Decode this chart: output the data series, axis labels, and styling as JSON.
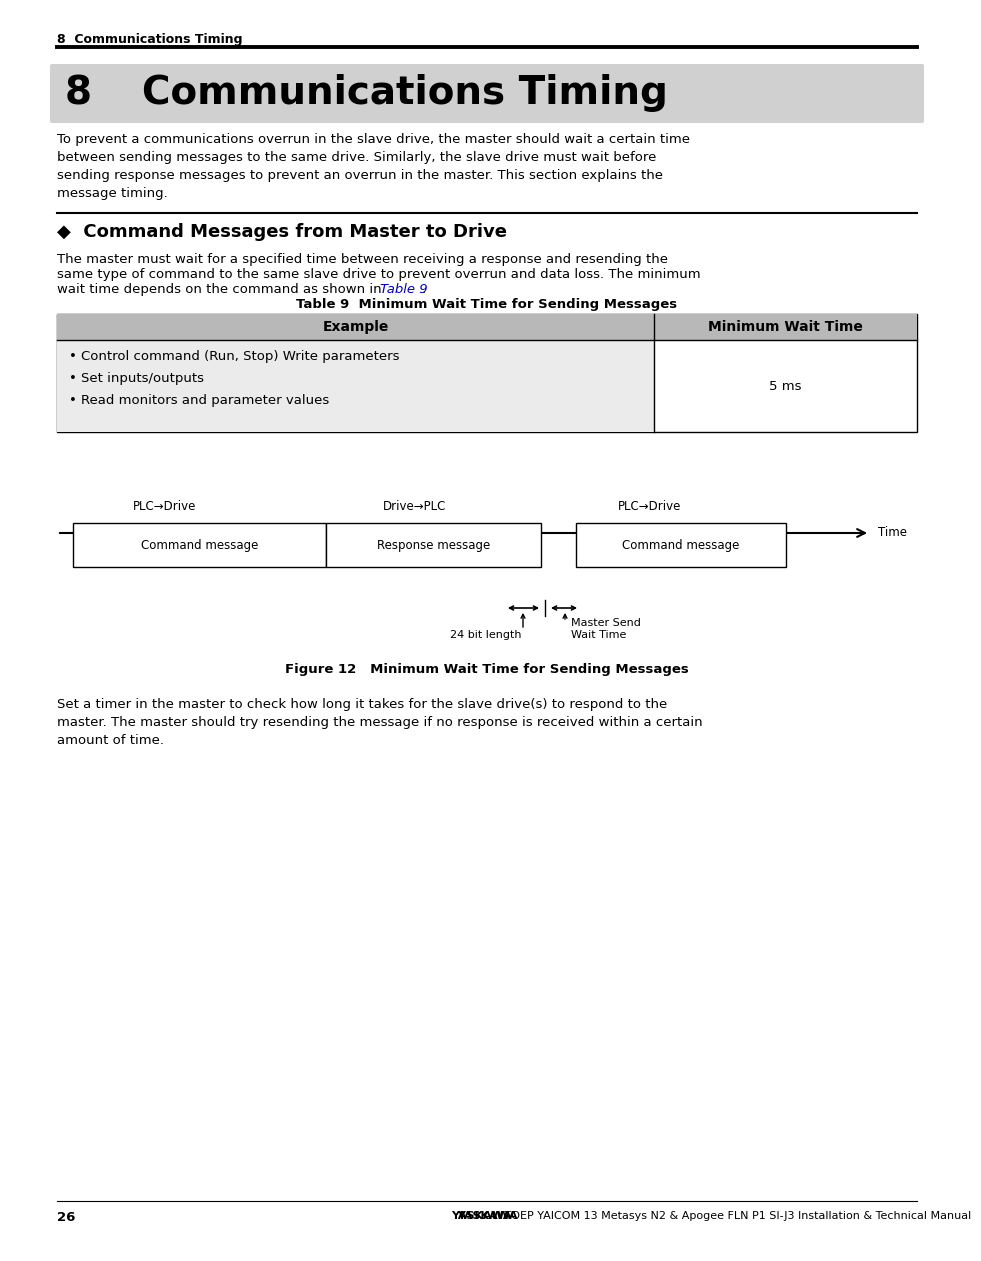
{
  "page_title": "8  Communications Timing",
  "section_number": "8",
  "section_title": "Communications Timing",
  "section_bg": "#d0d0d0",
  "body_text": "To prevent a communications overrun in the slave drive, the master should wait a certain time\nbetween sending messages to the same drive. Similarly, the slave drive must wait before\nsending response messages to prevent an overrun in the master. This section explains the\nmessage timing.",
  "subsection_diamond": "◆",
  "subsection_title": "Command Messages from Master to Drive",
  "para2_line1": "The master must wait for a specified time between receiving a response and resending the",
  "para2_line2": "same type of command to the same slave drive to prevent overrun and data loss. The minimum",
  "para2_line3a": "wait time depends on the command as shown in ",
  "para2_link": "Table 9",
  "para2_line3b": ".",
  "table_title": "Table 9  Minimum Wait Time for Sending Messages",
  "table_header1": "Example",
  "table_header2": "Minimum Wait Time",
  "table_row1_col1": [
    "Control command (Run, Stop) Write parameters",
    "Set inputs/outputs",
    "Read monitors and parameter values"
  ],
  "table_row1_col2": "5 ms",
  "fig_label1": "PLC→Drive",
  "fig_label2": "Drive→PLC",
  "fig_label3": "PLC→Drive",
  "fig_label_time": "Time",
  "box1_label": "Command message",
  "box2_label": "Response message",
  "box3_label": "Command message",
  "arrow_label1": "24 bit length",
  "arrow_label2": "Master Send\nWait Time",
  "figure_caption": "Figure 12   Minimum Wait Time for Sending Messages",
  "footer_text1": "Set a timer in the master to check how long it takes for the slave drive(s) to respond to the\nmaster. The master should try resending the message if no response is received within a certain\namount of time.",
  "page_number": "26",
  "footer_yaskawa": "YASKAWA",
  "footer_manual": " TOEP YAICOM 13 Metasys N2 & Apogee FLN P1 SI-J3 Installation & Technical Manual",
  "bg_color": "#ffffff",
  "text_color": "#000000",
  "link_color": "#0000cd"
}
